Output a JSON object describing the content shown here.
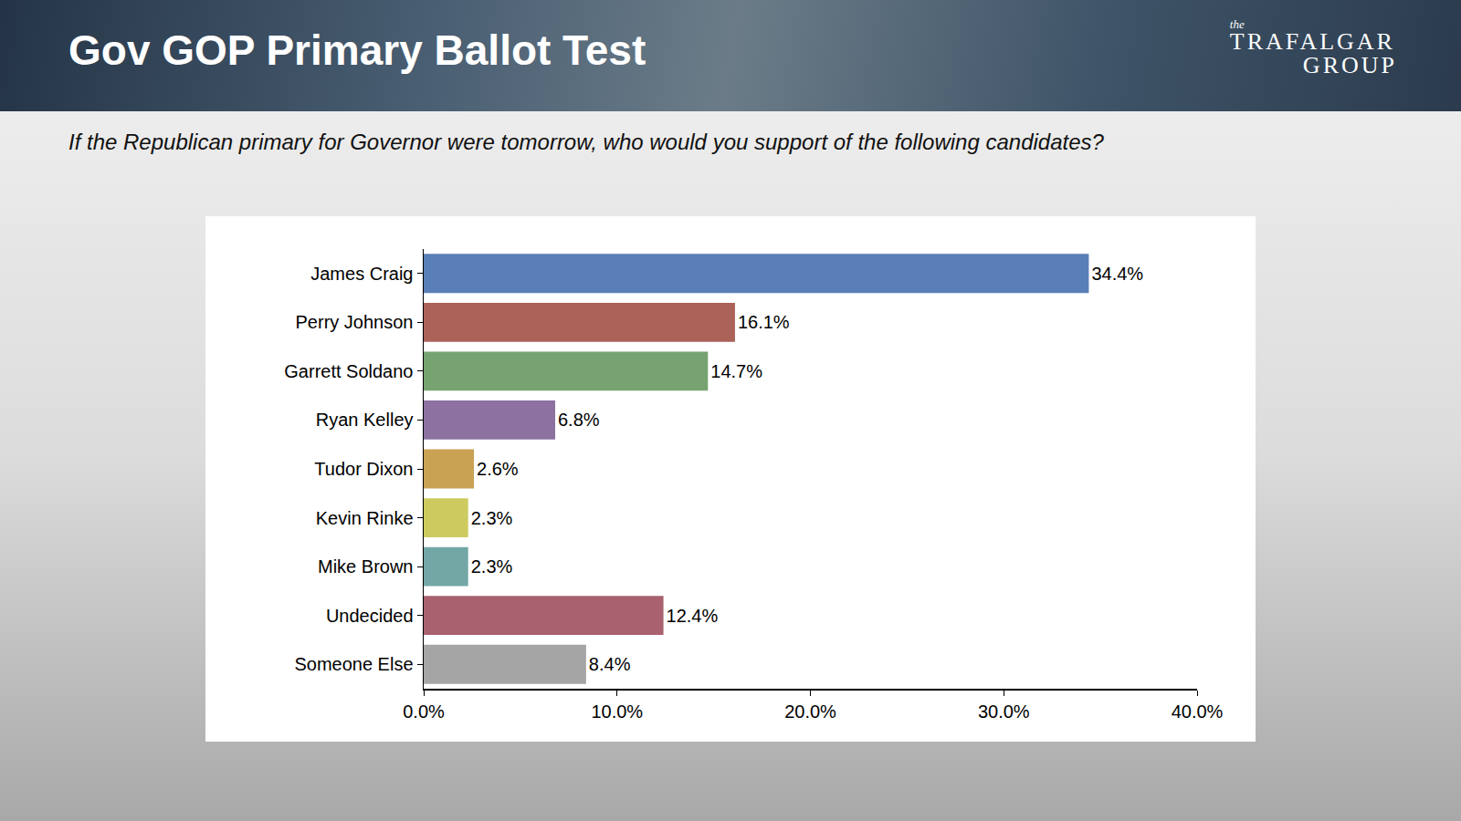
{
  "header": {
    "title": "Gov GOP Primary Ballot Test",
    "logo": [
      "the",
      "TRAFALGAR",
      "GROUP"
    ],
    "subtitle": "If the Republican primary for Governor were tomorrow, who would you support of the following candidates?"
  },
  "chart_data": {
    "type": "bar",
    "orientation": "horizontal",
    "categories": [
      "James Craig",
      "Perry Johnson",
      "Garrett Soldano",
      "Ryan Kelley",
      "Tudor Dixon",
      "Kevin Rinke",
      "Mike Brown",
      "Undecided",
      "Someone Else"
    ],
    "values": [
      34.4,
      16.1,
      14.7,
      6.8,
      2.6,
      2.3,
      2.3,
      12.4,
      8.4
    ],
    "value_labels": [
      "34.4%",
      "16.1%",
      "14.7%",
      "6.8%",
      "2.6%",
      "2.3%",
      "2.3%",
      "12.4%",
      "8.4%"
    ],
    "colors": [
      "#5a7fb8",
      "#ab6258",
      "#76a370",
      "#8c71a1",
      "#c9a254",
      "#cdcb5f",
      "#73a7a6",
      "#a9606f",
      "#a5a5a5"
    ],
    "xlim": [
      0,
      40
    ],
    "xticks": [
      {
        "value": 0,
        "label": "0.0%"
      },
      {
        "value": 10,
        "label": "10.0%"
      },
      {
        "value": 20,
        "label": "20.0%"
      },
      {
        "value": 30,
        "label": "30.0%"
      },
      {
        "value": 40,
        "label": "40.0%"
      }
    ],
    "grid": false,
    "data_labels": true
  }
}
